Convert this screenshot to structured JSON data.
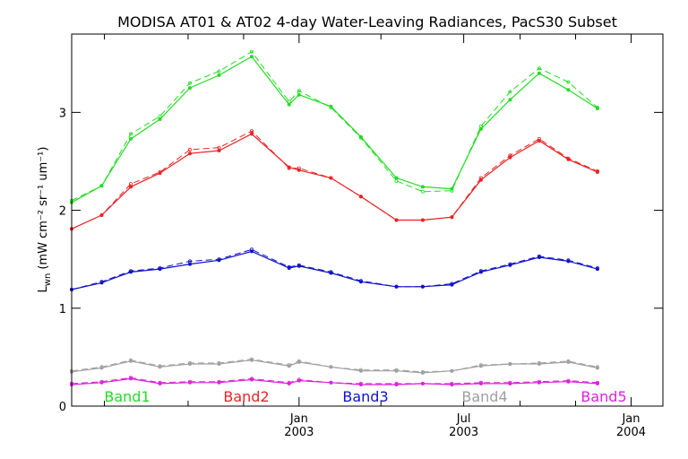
{
  "chart_data": {
    "type": "line",
    "title": "MODISA AT01 & AT02 4-day Water-Leaving Radiances, PacS30 Subset",
    "ylabel_main": "L",
    "ylabel_sub": "wn",
    "ylabel_units": "(mW cm⁻² sr⁻¹ um⁻¹)",
    "ylim": [
      0,
      3.8
    ],
    "yticks": [
      {
        "value": 0,
        "label": "0"
      },
      {
        "value": 1,
        "label": "1"
      },
      {
        "value": 2,
        "label": "2"
      },
      {
        "value": 3,
        "label": "3"
      }
    ],
    "xlim": [
      "2002-04-26",
      "2004-02-05"
    ],
    "xticks_major": [
      {
        "date": "2003-01-01",
        "month": "Jan",
        "year": "2003"
      },
      {
        "date": "2003-07-01",
        "month": "Jul",
        "year": "2003"
      },
      {
        "date": "2004-01-01",
        "month": "Jan",
        "year": "2004"
      }
    ],
    "xticks_minor": [
      "2002-06-01",
      "2002-09-01",
      "2002-11-01",
      "2003-04-01",
      "2003-09-01",
      "2003-11-01"
    ],
    "dates": [
      "2002-04-26",
      "2002-05-29",
      "2002-06-30",
      "2002-08-01",
      "2002-09-03",
      "2002-10-05",
      "2002-11-10",
      "2002-12-21",
      "2003-01-01",
      "2003-02-05",
      "2003-03-10",
      "2003-04-18",
      "2003-05-17",
      "2003-06-18",
      "2003-07-20",
      "2003-08-21",
      "2003-09-22",
      "2003-10-24",
      "2003-11-25",
      "2003-12-27",
      "2004-02-05"
    ],
    "series": [
      {
        "name": "Band1",
        "color": "#22dd22",
        "values": [
          2.08,
          2.25,
          2.73,
          2.93,
          3.25,
          3.38,
          3.57,
          3.08,
          3.18,
          3.06,
          2.75,
          2.33,
          2.24,
          2.22,
          2.83,
          3.13,
          3.4,
          3.23,
          3.04,
          null,
          null
        ],
        "values_dashed": [
          2.1,
          2.25,
          2.78,
          2.96,
          3.3,
          3.42,
          3.62,
          3.11,
          3.22,
          3.05,
          2.74,
          2.3,
          2.19,
          2.2,
          2.86,
          3.21,
          3.45,
          3.31,
          3.05,
          null,
          null
        ]
      },
      {
        "name": "Band2",
        "color": "#ee2222",
        "values": [
          1.81,
          1.95,
          2.24,
          2.38,
          2.58,
          2.61,
          2.78,
          2.44,
          2.41,
          2.33,
          2.14,
          1.9,
          1.9,
          1.93,
          2.31,
          2.54,
          2.71,
          2.52,
          2.39,
          null,
          null
        ],
        "values_dashed": [
          1.81,
          1.95,
          2.27,
          2.39,
          2.62,
          2.64,
          2.81,
          2.43,
          2.43,
          2.33,
          2.14,
          1.9,
          1.9,
          1.93,
          2.33,
          2.56,
          2.73,
          2.53,
          2.4,
          null,
          null
        ]
      },
      {
        "name": "Band3",
        "color": "#1111cc",
        "values": [
          1.19,
          1.26,
          1.37,
          1.4,
          1.45,
          1.49,
          1.58,
          1.41,
          1.43,
          1.36,
          1.27,
          1.22,
          1.22,
          1.24,
          1.37,
          1.44,
          1.52,
          1.48,
          1.4,
          null,
          null
        ],
        "values_dashed": [
          1.19,
          1.27,
          1.38,
          1.41,
          1.48,
          1.5,
          1.6,
          1.42,
          1.44,
          1.37,
          1.28,
          1.22,
          1.22,
          1.25,
          1.38,
          1.45,
          1.53,
          1.49,
          1.41,
          null,
          null
        ]
      },
      {
        "name": "Band4",
        "color": "#a0a0a0",
        "values": [
          0.35,
          0.39,
          0.46,
          0.4,
          0.43,
          0.43,
          0.47,
          0.41,
          0.45,
          0.4,
          0.36,
          0.36,
          0.34,
          0.36,
          0.41,
          0.43,
          0.43,
          0.45,
          0.39,
          null,
          null
        ],
        "values_dashed": [
          0.36,
          0.4,
          0.47,
          0.41,
          0.44,
          0.44,
          0.48,
          0.42,
          0.46,
          0.4,
          0.37,
          0.37,
          0.35,
          0.36,
          0.42,
          0.43,
          0.44,
          0.46,
          0.4,
          null,
          null
        ]
      },
      {
        "name": "Band5",
        "color": "#dd22dd",
        "values": [
          0.22,
          0.24,
          0.28,
          0.23,
          0.24,
          0.24,
          0.27,
          0.23,
          0.26,
          0.24,
          0.22,
          0.22,
          0.23,
          0.22,
          0.23,
          0.23,
          0.24,
          0.25,
          0.23,
          null,
          null
        ],
        "values_dashed": [
          0.23,
          0.25,
          0.29,
          0.24,
          0.25,
          0.25,
          0.28,
          0.24,
          0.27,
          0.24,
          0.23,
          0.23,
          0.23,
          0.23,
          0.24,
          0.24,
          0.25,
          0.26,
          0.24,
          null,
          null
        ]
      }
    ],
    "grid": false,
    "legend": "bottom"
  }
}
